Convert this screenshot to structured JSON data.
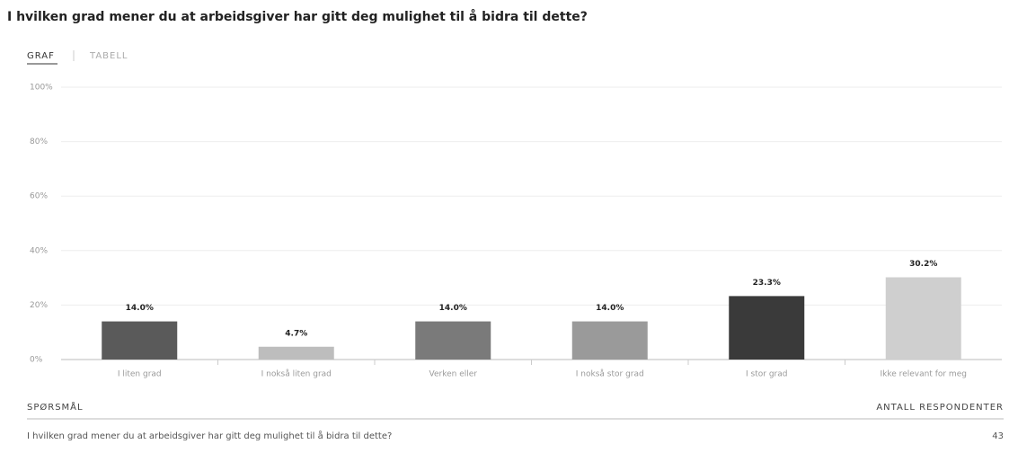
{
  "header": {
    "title": "I hvilken grad mener du at arbeidsgiver har gitt deg mulighet til å bidra til dette?"
  },
  "tabs": [
    "GRAF",
    "TABELL"
  ],
  "chart_data": {
    "type": "bar",
    "categories": [
      "I liten grad",
      "I nokså liten grad",
      "Verken eller",
      "I nokså stor grad",
      "I stor grad",
      "Ikke relevant for meg"
    ],
    "values": [
      14.0,
      4.7,
      14.0,
      14.0,
      23.3,
      30.2
    ],
    "value_labels": [
      "14.0%",
      "4.7%",
      "14.0%",
      "14.0%",
      "23.3%",
      "30.2%"
    ],
    "colors": [
      "#5a5a5a",
      "#bdbdbd",
      "#7a7a7a",
      "#9a9a9a",
      "#3a3a3a",
      "#cfcfcf"
    ],
    "ylim": [
      0,
      100
    ],
    "yticks": [
      {
        "value": 0,
        "label": "0%"
      },
      {
        "value": 20,
        "label": "20%"
      },
      {
        "value": 40,
        "label": "40%"
      },
      {
        "value": 60,
        "label": "60%"
      },
      {
        "value": 80,
        "label": "80%"
      },
      {
        "value": 100,
        "label": "100%"
      }
    ],
    "grid": true
  },
  "table": {
    "headers": [
      "SPØRSMÅL",
      "ANTALL RESPONDENTER"
    ],
    "rows": [
      [
        "I hvilken grad mener du at arbeidsgiver har gitt deg mulighet til å bidra til dette?",
        "43"
      ]
    ]
  }
}
